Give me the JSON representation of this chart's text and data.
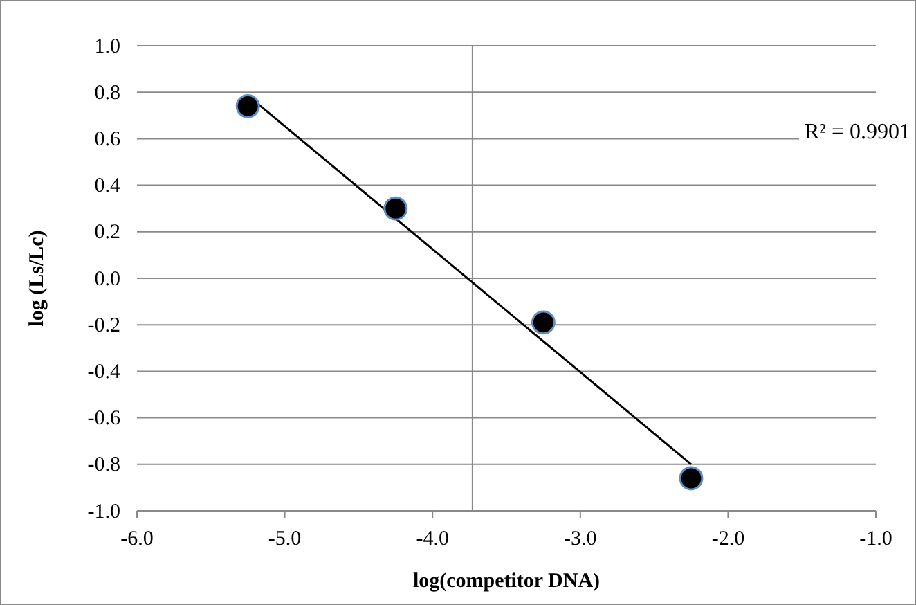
{
  "chart_data": {
    "type": "scatter",
    "xlabel": "log(competitor DNA)",
    "ylabel": "log (Ls/Lc)",
    "xlim": [
      -6,
      -1
    ],
    "xticks": [
      {
        "value": -6,
        "label": "-6.0"
      },
      {
        "value": -5,
        "label": "-5.0"
      },
      {
        "value": -4,
        "label": "-4.0"
      },
      {
        "value": -3,
        "label": "-3.0"
      },
      {
        "value": -2,
        "label": "-2.0"
      },
      {
        "value": -1,
        "label": "-1.0"
      }
    ],
    "ylim": [
      -1,
      1
    ],
    "yticks": [
      {
        "value": -1,
        "label": "-1.0"
      },
      {
        "value": -0.8,
        "label": "-0.8"
      },
      {
        "value": -0.6,
        "label": "-0.6"
      },
      {
        "value": -0.4,
        "label": "-0.4"
      },
      {
        "value": -0.2,
        "label": "-0.2"
      },
      {
        "value": 0,
        "label": "0.0"
      },
      {
        "value": 0.2,
        "label": "0.2"
      },
      {
        "value": 0.4,
        "label": "0.4"
      },
      {
        "value": 0.6,
        "label": "0.6"
      },
      {
        "value": 0.8,
        "label": "0.8"
      },
      {
        "value": 1,
        "label": "1.0"
      }
    ],
    "grid": "y",
    "marker": "circle",
    "ref_lines": [
      {
        "axis": "x",
        "value": -3.73,
        "color": "#898989"
      }
    ],
    "annotations": [
      "R² = 0.9901"
    ],
    "series": [
      {
        "color": "#000000",
        "x": [
          -5.25,
          -4.25,
          -3.25,
          -2.25
        ],
        "values": [
          0.74,
          0.3,
          -0.19,
          -0.86
        ]
      },
      {
        "type": "line",
        "color": "#000000",
        "x": [
          -5.25,
          -2.25
        ],
        "values": [
          0.786,
          -0.8
        ],
        "marker": "none"
      }
    ]
  }
}
